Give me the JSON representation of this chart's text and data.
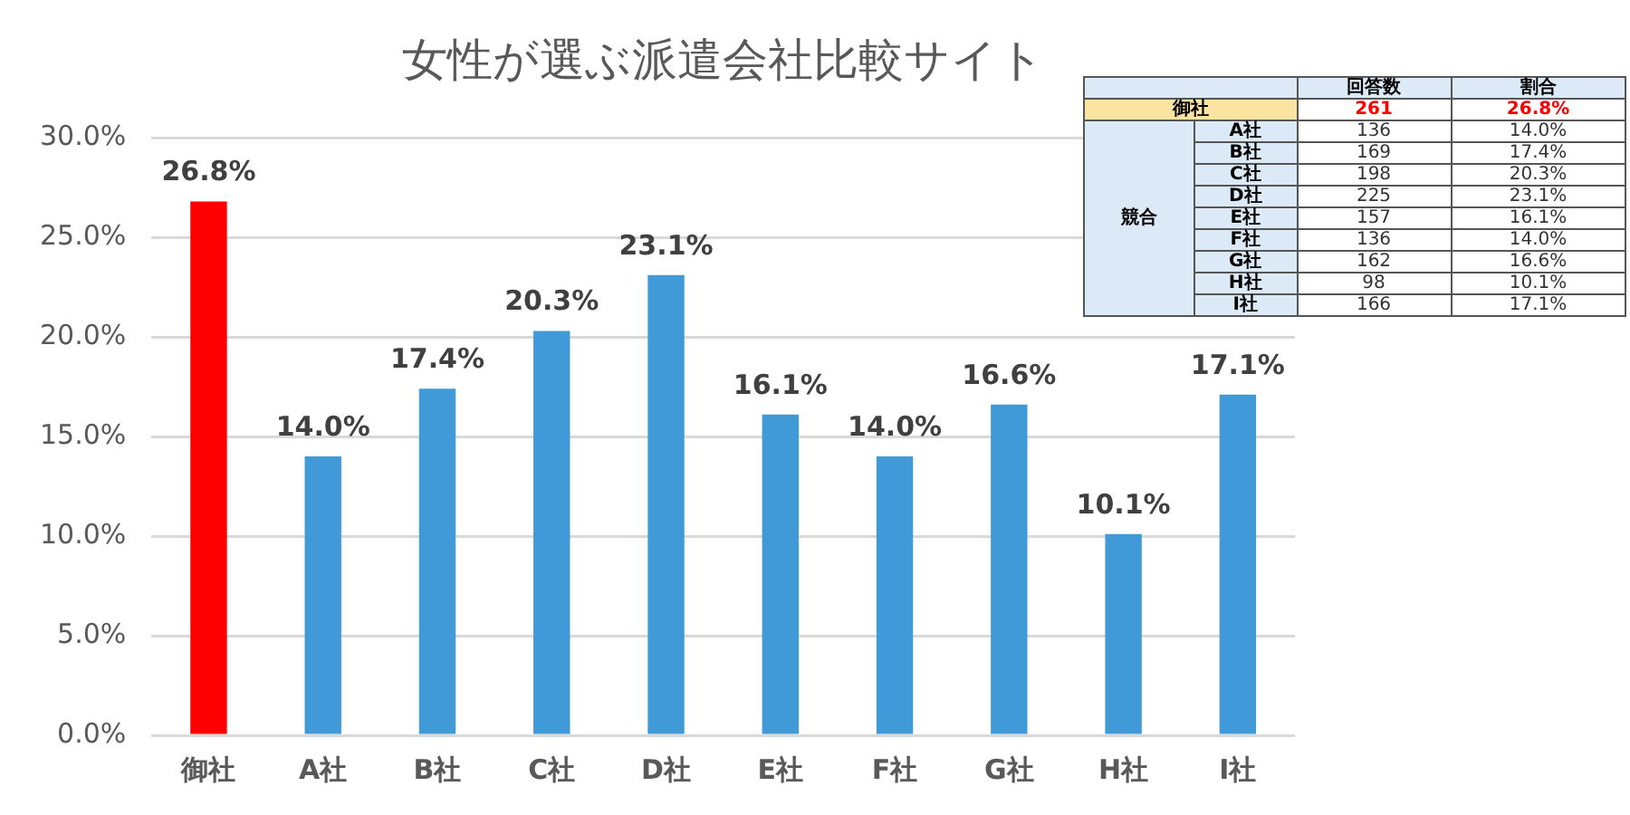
{
  "chart_data": [
    {
      "type": "bar",
      "title": "女性が選ぶ派遣会社比較サイト",
      "categories": [
        "御社",
        "A社",
        "B社",
        "C社",
        "D社",
        "E社",
        "F社",
        "G社",
        "H社",
        "I社"
      ],
      "values": [
        26.8,
        14.0,
        17.4,
        20.3,
        23.1,
        16.1,
        14.0,
        16.6,
        10.1,
        17.1
      ],
      "value_labels": [
        "26.8%",
        "14.0%",
        "17.4%",
        "20.3%",
        "23.1%",
        "16.1%",
        "14.0%",
        "16.6%",
        "10.1%",
        "17.1%"
      ],
      "colors": [
        "#ff0000",
        "#419ad8",
        "#419ad8",
        "#419ad8",
        "#419ad8",
        "#419ad8",
        "#419ad8",
        "#419ad8",
        "#419ad8",
        "#419ad8"
      ],
      "ylim": [
        0,
        30
      ],
      "yticks": [
        {
          "value": 0,
          "label": "0.0%"
        },
        {
          "value": 5,
          "label": "5.0%"
        },
        {
          "value": 10,
          "label": "10.0%"
        },
        {
          "value": 15,
          "label": "15.0%"
        },
        {
          "value": 20,
          "label": "20.0%"
        },
        {
          "value": 25,
          "label": "25.0%"
        },
        {
          "value": 30,
          "label": "30.0%"
        }
      ],
      "grid": "y",
      "legend": false
    },
    {
      "type": "other",
      "annotations": [
        "回答数",
        "割合",
        "競合",
        "御社",
        "261",
        "26.8%",
        "A社",
        "136",
        "14.0%",
        "B社",
        "169",
        "17.4%",
        "C社",
        "198",
        "20.3%",
        "D社",
        "225",
        "23.1%",
        "E社",
        "157",
        "16.1%",
        "F社",
        "136",
        "14.0%",
        "G社",
        "162",
        "16.6%",
        "H社",
        "98",
        "10.1%",
        "I社",
        "166",
        "17.1%"
      ]
    }
  ]
}
